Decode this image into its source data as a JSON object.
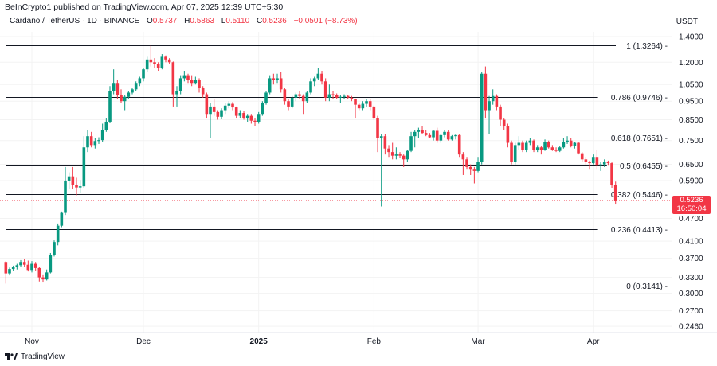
{
  "header": {
    "published": "BeInCrypto1 published on TradingView.com, Apr 07, 2025 12:39 UTC+5:30",
    "symbol": "Cardano / TetherUS · 1D · BINANCE",
    "o_label": "O",
    "o": "0.5737",
    "h_label": "H",
    "h": "0.5863",
    "l_label": "L",
    "l": "0.5110",
    "c_label": "C",
    "c": "0.5236",
    "change": "−0.0501 (−8.73%)"
  },
  "branding": {
    "logo_text": "TradingView",
    "logo_icon": "tradingview-logo-icon"
  },
  "current_price": {
    "price": "0.5236",
    "countdown": "16:50:04",
    "color": "#f23645"
  },
  "colors": {
    "up": "#089981",
    "down": "#f23645",
    "fib_line": "#131722"
  },
  "chart_data": {
    "type": "candlestick",
    "title": "",
    "y_scale": "log",
    "y_unit": "USDT",
    "ylim": [
      0.235,
      1.45
    ],
    "grid": true,
    "y_ticks": [
      "1.4000",
      "1.2000",
      "1.0500",
      "0.9500",
      "0.8500",
      "0.7500",
      "0.6500",
      "0.5900",
      "0.4700",
      "0.4100",
      "0.3700",
      "0.3300",
      "0.3000",
      "0.2700",
      "0.2460"
    ],
    "x_ticks": [
      {
        "label": "Nov",
        "date": "2024-11-01",
        "bold": false
      },
      {
        "label": "Dec",
        "date": "2024-12-01",
        "bold": false
      },
      {
        "label": "2025",
        "date": "2025-01-01",
        "bold": true
      },
      {
        "label": "Feb",
        "date": "2025-02-01",
        "bold": false
      },
      {
        "label": "Mar",
        "date": "2025-03-01",
        "bold": false
      },
      {
        "label": "Apr",
        "date": "2025-04-01",
        "bold": false
      }
    ],
    "fib_levels": [
      {
        "label": "1 (1.3264)",
        "value": 1.3264
      },
      {
        "label": "0.786 (0.9746)",
        "value": 0.9746
      },
      {
        "label": "0.618 (0.7651)",
        "value": 0.7651
      },
      {
        "label": "0.5 (0.6455)",
        "value": 0.6455
      },
      {
        "label": "0.382 (0.5446)",
        "value": 0.5446
      },
      {
        "label": "0.236 (0.4413)",
        "value": 0.4413
      },
      {
        "label": "0 (0.3141)",
        "value": 0.3141
      }
    ],
    "candle_fields": [
      "date",
      "open",
      "high",
      "low",
      "close"
    ],
    "candles": [
      [
        "2024-10-25",
        0.362,
        0.364,
        0.318,
        0.338
      ],
      [
        "2024-10-26",
        0.338,
        0.35,
        0.334,
        0.347
      ],
      [
        "2024-10-27",
        0.347,
        0.354,
        0.343,
        0.352
      ],
      [
        "2024-10-28",
        0.352,
        0.358,
        0.346,
        0.355
      ],
      [
        "2024-10-29",
        0.355,
        0.366,
        0.352,
        0.362
      ],
      [
        "2024-10-30",
        0.362,
        0.368,
        0.352,
        0.356
      ],
      [
        "2024-10-31",
        0.356,
        0.365,
        0.342,
        0.345
      ],
      [
        "2024-11-01",
        0.345,
        0.364,
        0.34,
        0.358
      ],
      [
        "2024-11-02",
        0.358,
        0.362,
        0.344,
        0.349
      ],
      [
        "2024-11-03",
        0.349,
        0.352,
        0.322,
        0.33
      ],
      [
        "2024-11-04",
        0.33,
        0.336,
        0.32,
        0.326
      ],
      [
        "2024-11-05",
        0.326,
        0.346,
        0.324,
        0.34
      ],
      [
        "2024-11-06",
        0.34,
        0.382,
        0.338,
        0.378
      ],
      [
        "2024-11-07",
        0.378,
        0.412,
        0.374,
        0.408
      ],
      [
        "2024-11-08",
        0.408,
        0.456,
        0.4,
        0.45
      ],
      [
        "2024-11-09",
        0.45,
        0.49,
        0.446,
        0.486
      ],
      [
        "2024-11-10",
        0.486,
        0.64,
        0.48,
        0.59
      ],
      [
        "2024-11-11",
        0.59,
        0.62,
        0.56,
        0.605
      ],
      [
        "2024-11-12",
        0.605,
        0.64,
        0.562,
        0.575
      ],
      [
        "2024-11-13",
        0.575,
        0.6,
        0.54,
        0.566
      ],
      [
        "2024-11-14",
        0.566,
        0.592,
        0.548,
        0.57
      ],
      [
        "2024-11-15",
        0.57,
        0.77,
        0.565,
        0.72
      ],
      [
        "2024-11-16",
        0.72,
        0.8,
        0.7,
        0.77
      ],
      [
        "2024-11-17",
        0.77,
        0.79,
        0.72,
        0.73
      ],
      [
        "2024-11-18",
        0.73,
        0.76,
        0.715,
        0.748
      ],
      [
        "2024-11-19",
        0.748,
        0.765,
        0.735,
        0.752
      ],
      [
        "2024-11-20",
        0.752,
        0.83,
        0.745,
        0.8
      ],
      [
        "2024-11-21",
        0.8,
        0.86,
        0.79,
        0.84
      ],
      [
        "2024-11-22",
        0.84,
        1.04,
        0.835,
        1.01
      ],
      [
        "2024-11-23",
        1.01,
        1.15,
        0.99,
        1.06
      ],
      [
        "2024-11-24",
        1.06,
        1.08,
        0.96,
        0.985
      ],
      [
        "2024-11-25",
        0.985,
        1.02,
        0.94,
        0.95
      ],
      [
        "2024-11-26",
        0.95,
        0.985,
        0.9,
        0.975
      ],
      [
        "2024-11-27",
        0.975,
        1.01,
        0.965,
        1.0
      ],
      [
        "2024-11-28",
        1.0,
        1.03,
        0.99,
        1.02
      ],
      [
        "2024-11-29",
        1.02,
        1.07,
        1.01,
        1.06
      ],
      [
        "2024-11-30",
        1.06,
        1.1,
        1.04,
        1.09
      ],
      [
        "2024-12-01",
        1.09,
        1.16,
        1.07,
        1.15
      ],
      [
        "2024-12-02",
        1.15,
        1.24,
        1.13,
        1.22
      ],
      [
        "2024-12-03",
        1.22,
        1.3264,
        1.17,
        1.2
      ],
      [
        "2024-12-04",
        1.2,
        1.23,
        1.16,
        1.185
      ],
      [
        "2024-12-05",
        1.185,
        1.2,
        1.14,
        1.16
      ],
      [
        "2024-12-06",
        1.16,
        1.26,
        1.15,
        1.24
      ],
      [
        "2024-12-07",
        1.24,
        1.25,
        1.2,
        1.22
      ],
      [
        "2024-12-08",
        1.22,
        1.23,
        1.19,
        1.2
      ],
      [
        "2024-12-09",
        1.2,
        1.205,
        0.92,
        0.99
      ],
      [
        "2024-12-10",
        0.99,
        1.04,
        0.92,
        1.01
      ],
      [
        "2024-12-11",
        1.01,
        1.11,
        0.99,
        1.09
      ],
      [
        "2024-12-12",
        1.09,
        1.14,
        1.07,
        1.11
      ],
      [
        "2024-12-13",
        1.11,
        1.12,
        1.06,
        1.08
      ],
      [
        "2024-12-14",
        1.08,
        1.11,
        1.04,
        1.06
      ],
      [
        "2024-12-15",
        1.06,
        1.1,
        1.05,
        1.08
      ],
      [
        "2024-12-16",
        1.08,
        1.09,
        1.0,
        1.03
      ],
      [
        "2024-12-17",
        1.03,
        1.04,
        0.97,
        0.99
      ],
      [
        "2024-12-18",
        0.99,
        1.0,
        0.86,
        0.88
      ],
      [
        "2024-12-19",
        0.88,
        0.94,
        0.76,
        0.92
      ],
      [
        "2024-12-20",
        0.92,
        0.96,
        0.87,
        0.89
      ],
      [
        "2024-12-21",
        0.89,
        0.9,
        0.85,
        0.865
      ],
      [
        "2024-12-22",
        0.865,
        0.91,
        0.855,
        0.9
      ],
      [
        "2024-12-23",
        0.9,
        0.94,
        0.88,
        0.925
      ],
      [
        "2024-12-24",
        0.925,
        0.95,
        0.91,
        0.935
      ],
      [
        "2024-12-25",
        0.935,
        0.945,
        0.9,
        0.915
      ],
      [
        "2024-12-26",
        0.915,
        0.92,
        0.86,
        0.87
      ],
      [
        "2024-12-27",
        0.87,
        0.9,
        0.86,
        0.885
      ],
      [
        "2024-12-28",
        0.885,
        0.895,
        0.85,
        0.86
      ],
      [
        "2024-12-29",
        0.86,
        0.88,
        0.84,
        0.87
      ],
      [
        "2024-12-30",
        0.87,
        0.88,
        0.83,
        0.845
      ],
      [
        "2024-12-31",
        0.845,
        0.86,
        0.82,
        0.84
      ],
      [
        "2025-01-01",
        0.84,
        0.89,
        0.83,
        0.88
      ],
      [
        "2025-01-02",
        0.88,
        0.95,
        0.87,
        0.94
      ],
      [
        "2025-01-03",
        0.94,
        1.01,
        0.93,
        1.0
      ],
      [
        "2025-01-04",
        1.0,
        1.11,
        0.99,
        1.09
      ],
      [
        "2025-01-05",
        1.09,
        1.12,
        1.05,
        1.08
      ],
      [
        "2025-01-06",
        1.08,
        1.12,
        1.06,
        1.09
      ],
      [
        "2025-01-07",
        1.09,
        1.13,
        1.0,
        1.02
      ],
      [
        "2025-01-08",
        1.02,
        1.03,
        0.93,
        0.95
      ],
      [
        "2025-01-09",
        0.95,
        0.96,
        0.9,
        0.92
      ],
      [
        "2025-01-10",
        0.92,
        0.98,
        0.91,
        0.97
      ],
      [
        "2025-01-11",
        0.97,
        1.0,
        0.95,
        0.99
      ],
      [
        "2025-01-12",
        0.99,
        1.01,
        0.96,
        0.98
      ],
      [
        "2025-01-13",
        0.98,
        0.99,
        0.88,
        0.95
      ],
      [
        "2025-01-14",
        0.95,
        1.01,
        0.94,
        1.0
      ],
      [
        "2025-01-15",
        1.0,
        1.09,
        0.99,
        1.07
      ],
      [
        "2025-01-16",
        1.07,
        1.1,
        1.04,
        1.09
      ],
      [
        "2025-01-17",
        1.09,
        1.16,
        1.08,
        1.12
      ],
      [
        "2025-01-18",
        1.12,
        1.14,
        1.05,
        1.07
      ],
      [
        "2025-01-19",
        1.07,
        1.09,
        0.95,
        0.97
      ],
      [
        "2025-01-20",
        0.97,
        1.05,
        0.95,
        0.99
      ],
      [
        "2025-01-21",
        0.99,
        1.01,
        0.96,
        0.985
      ],
      [
        "2025-01-22",
        0.985,
        0.995,
        0.96,
        0.97
      ],
      [
        "2025-01-23",
        0.97,
        0.985,
        0.94,
        0.975
      ],
      [
        "2025-01-24",
        0.975,
        0.99,
        0.96,
        0.98
      ],
      [
        "2025-01-25",
        0.98,
        0.985,
        0.96,
        0.97
      ],
      [
        "2025-01-26",
        0.97,
        0.98,
        0.95,
        0.96
      ],
      [
        "2025-01-27",
        0.96,
        0.965,
        0.86,
        0.93
      ],
      [
        "2025-01-28",
        0.93,
        0.94,
        0.9,
        0.91
      ],
      [
        "2025-01-29",
        0.91,
        0.95,
        0.9,
        0.935
      ],
      [
        "2025-01-30",
        0.935,
        0.96,
        0.92,
        0.95
      ],
      [
        "2025-01-31",
        0.95,
        0.96,
        0.9,
        0.92
      ],
      [
        "2025-02-01",
        0.92,
        0.925,
        0.85,
        0.86
      ],
      [
        "2025-02-02",
        0.86,
        0.87,
        0.7,
        0.76
      ],
      [
        "2025-02-03",
        0.76,
        0.78,
        0.505,
        0.77
      ],
      [
        "2025-02-04",
        0.77,
        0.78,
        0.69,
        0.715
      ],
      [
        "2025-02-05",
        0.715,
        0.73,
        0.68,
        0.7
      ],
      [
        "2025-02-06",
        0.7,
        0.74,
        0.67,
        0.685
      ],
      [
        "2025-02-07",
        0.685,
        0.72,
        0.67,
        0.69
      ],
      [
        "2025-02-08",
        0.69,
        0.7,
        0.675,
        0.685
      ],
      [
        "2025-02-09",
        0.685,
        0.69,
        0.64,
        0.67
      ],
      [
        "2025-02-10",
        0.67,
        0.71,
        0.66,
        0.705
      ],
      [
        "2025-02-11",
        0.705,
        0.79,
        0.7,
        0.77
      ],
      [
        "2025-02-12",
        0.77,
        0.8,
        0.72,
        0.79
      ],
      [
        "2025-02-13",
        0.79,
        0.81,
        0.76,
        0.8
      ],
      [
        "2025-02-14",
        0.8,
        0.82,
        0.78,
        0.785
      ],
      [
        "2025-02-15",
        0.785,
        0.8,
        0.77,
        0.775
      ],
      [
        "2025-02-16",
        0.775,
        0.785,
        0.76,
        0.765
      ],
      [
        "2025-02-17",
        0.765,
        0.8,
        0.75,
        0.795
      ],
      [
        "2025-02-18",
        0.795,
        0.81,
        0.74,
        0.75
      ],
      [
        "2025-02-19",
        0.75,
        0.78,
        0.74,
        0.775
      ],
      [
        "2025-02-20",
        0.775,
        0.8,
        0.765,
        0.79
      ],
      [
        "2025-02-21",
        0.79,
        0.8,
        0.75,
        0.755
      ],
      [
        "2025-02-22",
        0.755,
        0.775,
        0.75,
        0.77
      ],
      [
        "2025-02-23",
        0.77,
        0.78,
        0.755,
        0.775
      ],
      [
        "2025-02-24",
        0.775,
        0.78,
        0.68,
        0.69
      ],
      [
        "2025-02-25",
        0.69,
        0.7,
        0.61,
        0.67
      ],
      [
        "2025-02-26",
        0.67,
        0.68,
        0.63,
        0.64
      ],
      [
        "2025-02-27",
        0.64,
        0.65,
        0.61,
        0.63
      ],
      [
        "2025-02-28",
        0.63,
        0.64,
        0.58,
        0.625
      ],
      [
        "2025-03-01",
        0.625,
        0.68,
        0.62,
        0.66
      ],
      [
        "2025-03-02",
        0.66,
        1.13,
        0.65,
        1.12
      ],
      [
        "2025-03-03",
        1.12,
        1.17,
        0.86,
        0.9
      ],
      [
        "2025-03-04",
        0.9,
        0.98,
        0.78,
        0.95
      ],
      [
        "2025-03-05",
        0.95,
        1.02,
        0.93,
        0.98
      ],
      [
        "2025-03-06",
        0.98,
        0.99,
        0.9,
        0.92
      ],
      [
        "2025-03-07",
        0.92,
        0.93,
        0.82,
        0.85
      ],
      [
        "2025-03-08",
        0.85,
        0.86,
        0.8,
        0.82
      ],
      [
        "2025-03-09",
        0.82,
        0.83,
        0.72,
        0.74
      ],
      [
        "2025-03-10",
        0.74,
        0.75,
        0.65,
        0.66
      ],
      [
        "2025-03-11",
        0.66,
        0.74,
        0.65,
        0.73
      ],
      [
        "2025-03-12",
        0.73,
        0.77,
        0.71,
        0.74
      ],
      [
        "2025-03-13",
        0.74,
        0.75,
        0.7,
        0.71
      ],
      [
        "2025-03-14",
        0.71,
        0.75,
        0.7,
        0.74
      ],
      [
        "2025-03-15",
        0.74,
        0.76,
        0.73,
        0.75
      ],
      [
        "2025-03-16",
        0.75,
        0.755,
        0.7,
        0.71
      ],
      [
        "2025-03-17",
        0.71,
        0.73,
        0.7,
        0.72
      ],
      [
        "2025-03-18",
        0.72,
        0.725,
        0.69,
        0.71
      ],
      [
        "2025-03-19",
        0.71,
        0.755,
        0.705,
        0.745
      ],
      [
        "2025-03-20",
        0.745,
        0.75,
        0.715,
        0.72
      ],
      [
        "2025-03-21",
        0.72,
        0.73,
        0.705,
        0.71
      ],
      [
        "2025-03-22",
        0.71,
        0.72,
        0.7,
        0.705
      ],
      [
        "2025-03-23",
        0.705,
        0.725,
        0.7,
        0.72
      ],
      [
        "2025-03-24",
        0.72,
        0.76,
        0.715,
        0.745
      ],
      [
        "2025-03-25",
        0.745,
        0.77,
        0.735,
        0.75
      ],
      [
        "2025-03-26",
        0.75,
        0.76,
        0.72,
        0.725
      ],
      [
        "2025-03-27",
        0.725,
        0.745,
        0.715,
        0.74
      ],
      [
        "2025-03-28",
        0.74,
        0.745,
        0.69,
        0.695
      ],
      [
        "2025-03-29",
        0.695,
        0.7,
        0.66,
        0.67
      ],
      [
        "2025-03-30",
        0.67,
        0.68,
        0.65,
        0.66
      ],
      [
        "2025-03-31",
        0.66,
        0.665,
        0.63,
        0.655
      ],
      [
        "2025-04-01",
        0.655,
        0.69,
        0.65,
        0.68
      ],
      [
        "2025-04-02",
        0.68,
        0.71,
        0.63,
        0.645
      ],
      [
        "2025-04-03",
        0.645,
        0.66,
        0.625,
        0.65
      ],
      [
        "2025-04-04",
        0.65,
        0.67,
        0.64,
        0.66
      ],
      [
        "2025-04-05",
        0.66,
        0.665,
        0.645,
        0.655
      ],
      [
        "2025-04-06",
        0.655,
        0.658,
        0.565,
        0.5737
      ],
      [
        "2025-04-07",
        0.5737,
        0.5863,
        0.511,
        0.5236
      ]
    ]
  }
}
